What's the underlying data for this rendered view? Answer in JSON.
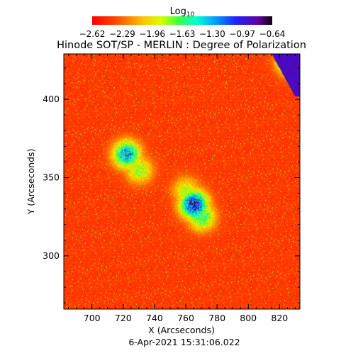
{
  "chart_data": {
    "type": "heatmap",
    "title": "Hinode SOT/SP - MERLIN : Degree of Polarization",
    "xlabel": "X (Arcseconds)",
    "ylabel": "Y (Arcseconds)",
    "footer": "6-Apr-2021 15:31:06.022",
    "colorbar": {
      "label_base": "Log",
      "label_sub": "10",
      "ticks": [
        "-2.62",
        "-2.29",
        "-1.96",
        "-1.63",
        "-1.30",
        "-0.97",
        "-0.64"
      ],
      "min": -2.62,
      "max": -0.64,
      "colormap": "rainbow"
    },
    "xlim": [
      682,
      833
    ],
    "ylim": [
      266,
      429
    ],
    "x_ticks": [
      700,
      720,
      740,
      760,
      780,
      800,
      820
    ],
    "y_ticks": [
      300,
      350,
      400
    ],
    "y_minor_step": 10,
    "x_minor_step": 5,
    "background_level": -2.45,
    "features": [
      {
        "x": 722,
        "y": 365,
        "peak": -1.15
      },
      {
        "x": 730,
        "y": 355,
        "peak": -1.7
      },
      {
        "x": 765,
        "y": 333,
        "peak": -0.75
      },
      {
        "x": 770,
        "y": 325,
        "peak": -1.5
      },
      {
        "x": 760,
        "y": 342,
        "peak": -1.8
      },
      {
        "x": 828,
        "y": 425,
        "peak": -0.8
      }
    ]
  }
}
